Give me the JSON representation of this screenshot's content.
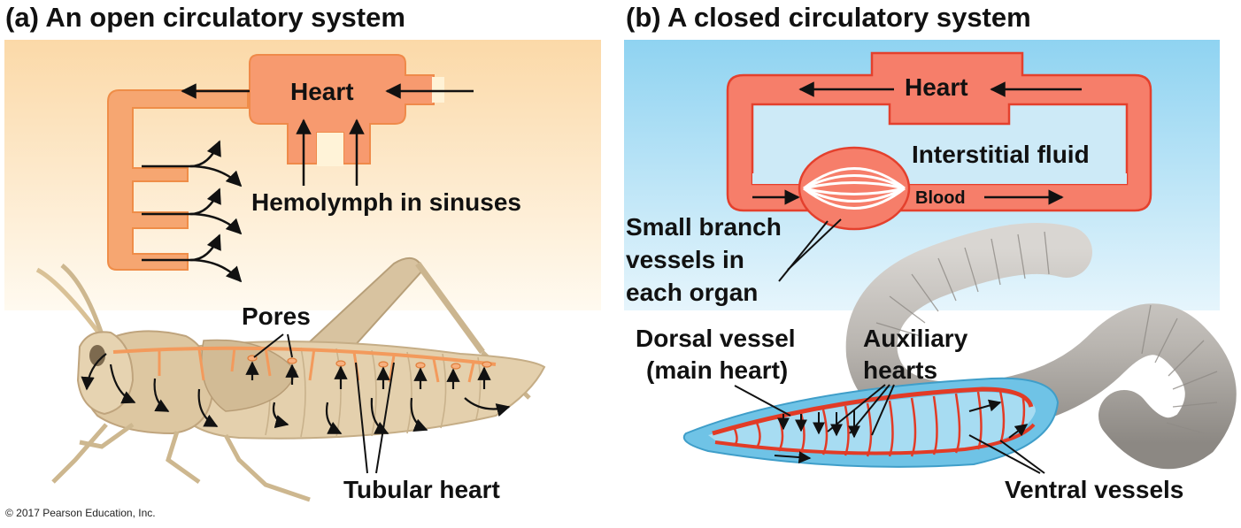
{
  "panel_a": {
    "title": "(a) An open circulatory system",
    "heart_label": "Heart",
    "hemolymph_label": "Hemolymph in sinuses",
    "pores_label": "Pores",
    "tubular_heart_label": "Tubular heart"
  },
  "panel_b": {
    "title": "(b) A closed circulatory system",
    "heart_label": "Heart",
    "interstitial_label": "Interstitial fluid",
    "blood_label": "Blood",
    "small_branch_line1": "Small branch",
    "small_branch_line2": "vessels in",
    "small_branch_line3": "each organ",
    "dorsal_line1": "Dorsal vessel",
    "dorsal_line2": "(main heart)",
    "auxiliary_line1": "Auxiliary",
    "auxiliary_line2": "hearts",
    "ventral_label": "Ventral vessels"
  },
  "credit": "© 2017 Pearson Education, Inc.",
  "colors": {
    "panel_a_bg": "#fde9c9",
    "panel_b_bg": "#a9dcf3",
    "open_vessel": "#f4a36f",
    "closed_vessel": "#e9472f",
    "heart_fill": "#f79a7b",
    "insect_body": "#e3cda7",
    "worm_body": "#bdbab6"
  },
  "icons": [
    "black-arrow-icon",
    "grasshopper-illustration",
    "earthworm-illustration"
  ]
}
